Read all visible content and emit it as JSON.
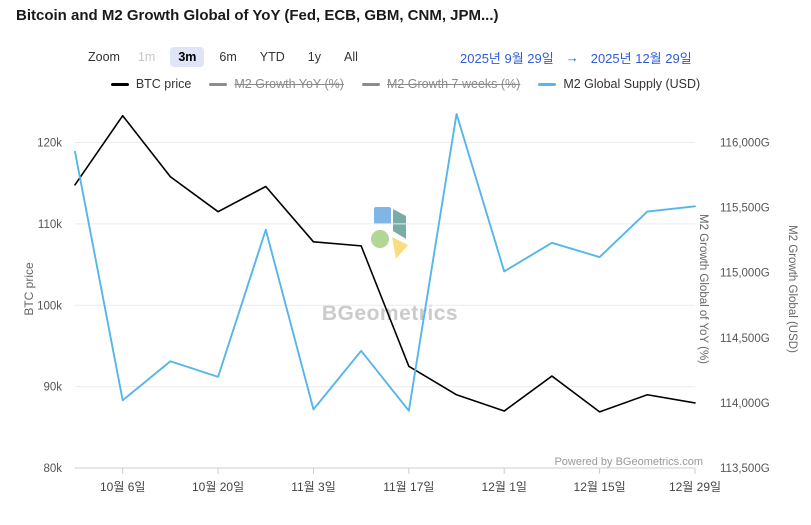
{
  "title": "Bitcoin and M2 Growth Global of YoY (Fed, ECB, GBM, CNM, JPM...)",
  "range_selector": {
    "zoom_label": "Zoom",
    "buttons": [
      {
        "label": "1m",
        "state": "disabled"
      },
      {
        "label": "3m",
        "state": "selected"
      },
      {
        "label": "6m",
        "state": "normal"
      },
      {
        "label": "YTD",
        "state": "normal"
      },
      {
        "label": "1y",
        "state": "normal"
      },
      {
        "label": "All",
        "state": "normal"
      }
    ],
    "date_from": "2025년 9월 29일",
    "arrow": "→",
    "date_to": "2025년 12월 29일",
    "date_color": "#2f5bd8"
  },
  "legend": [
    {
      "label": "BTC price",
      "color": "#000000",
      "disabled": false
    },
    {
      "label": "M2 Growth YoY (%)",
      "color": "#8c8c8c",
      "disabled": true
    },
    {
      "label": "M2 Growth 7 weeks (%)",
      "color": "#8c8c8c",
      "disabled": true
    },
    {
      "label": "M2 Global Supply (USD)",
      "color": "#56b6e9",
      "disabled": false
    }
  ],
  "watermark": "BGeometrics",
  "credit": "Powered by BGeometrics.com",
  "chart_data": {
    "type": "line",
    "x": [
      "2025-09-29",
      "2025-10-06",
      "2025-10-13",
      "2025-10-20",
      "2025-10-27",
      "2025-11-03",
      "2025-11-10",
      "2025-11-17",
      "2025-11-24",
      "2025-12-01",
      "2025-12-08",
      "2025-12-15",
      "2025-12-22",
      "2025-12-29"
    ],
    "x_ticks": [
      {
        "index": 1,
        "label": "10월 6일"
      },
      {
        "index": 3,
        "label": "10월 20일"
      },
      {
        "index": 5,
        "label": "11월 3일"
      },
      {
        "index": 7,
        "label": "11월 17일"
      },
      {
        "index": 9,
        "label": "12월 1일"
      },
      {
        "index": 11,
        "label": "12월 15일"
      },
      {
        "index": 13,
        "label": "12월 29일"
      }
    ],
    "series": [
      {
        "name": "BTC price",
        "axis": "left",
        "color": "#000000",
        "width": 1.6,
        "values": [
          114800,
          123300,
          115800,
          111500,
          114600,
          107800,
          107300,
          92500,
          89000,
          87000,
          91300,
          86900,
          89000,
          88000
        ]
      },
      {
        "name": "M2 Global Supply (USD)",
        "axis": "right",
        "color": "#56b6e9",
        "width": 1.9,
        "values": [
          115930,
          114020,
          114320,
          114200,
          115330,
          113950,
          114400,
          113940,
          116220,
          115010,
          115230,
          115120,
          115470,
          115510
        ]
      }
    ],
    "left_axis": {
      "title": "BTC price",
      "min": 80000,
      "max": 124000,
      "ticks": [
        {
          "value": 80000,
          "label": "80k"
        },
        {
          "value": 90000,
          "label": "90k"
        },
        {
          "value": 100000,
          "label": "100k"
        },
        {
          "value": 110000,
          "label": "110k"
        },
        {
          "value": 120000,
          "label": "120k"
        }
      ]
    },
    "right_axis": {
      "title": "M2 Growth Global (USD)",
      "min": 113500,
      "max": 116250,
      "ticks": [
        {
          "value": 113500,
          "label": "113,500G"
        },
        {
          "value": 114000,
          "label": "114,000G"
        },
        {
          "value": 114500,
          "label": "114,500G"
        },
        {
          "value": 115000,
          "label": "115,000G"
        },
        {
          "value": 115500,
          "label": "115,500G"
        },
        {
          "value": 116000,
          "label": "116,000G"
        }
      ]
    },
    "right_inner_axis": {
      "title": "M2 Growth Global of YoY (%)"
    },
    "grid": true,
    "legend_position": "top"
  }
}
